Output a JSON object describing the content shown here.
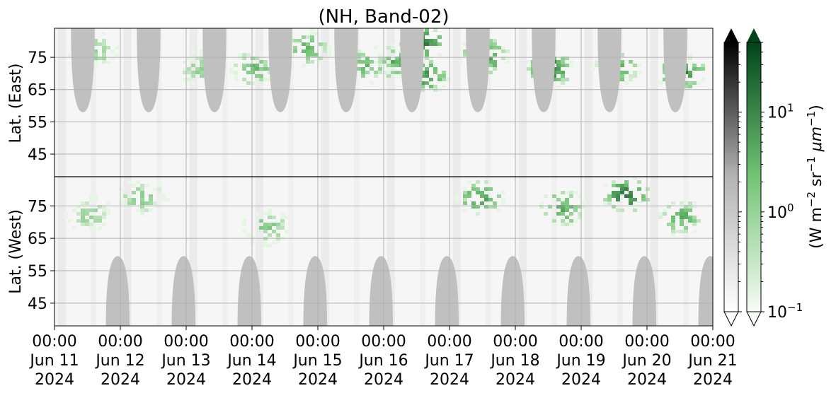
{
  "chart_data": {
    "type": "heatmap",
    "title": "(NH, Band-02)",
    "x_axis": {
      "ticks": [
        {
          "day": "00:00",
          "date": "Jun 11",
          "year": "2024"
        },
        {
          "day": "00:00",
          "date": "Jun 12",
          "year": "2024"
        },
        {
          "day": "00:00",
          "date": "Jun 13",
          "year": "2024"
        },
        {
          "day": "00:00",
          "date": "Jun 14",
          "year": "2024"
        },
        {
          "day": "00:00",
          "date": "Jun 15",
          "year": "2024"
        },
        {
          "day": "00:00",
          "date": "Jun 16",
          "year": "2024"
        },
        {
          "day": "00:00",
          "date": "Jun 17",
          "year": "2024"
        },
        {
          "day": "00:00",
          "date": "Jun 18",
          "year": "2024"
        },
        {
          "day": "00:00",
          "date": "Jun 19",
          "year": "2024"
        },
        {
          "day": "00:00",
          "date": "Jun 20",
          "year": "2024"
        },
        {
          "day": "00:00",
          "date": "Jun 21",
          "year": "2024"
        }
      ],
      "range": [
        "2024-06-11T00:00",
        "2024-06-21T00:00"
      ]
    },
    "y_axis_east": {
      "label": "Lat. (East)",
      "ticks": [
        "45",
        "55",
        "65",
        "75"
      ],
      "range": [
        38,
        84
      ]
    },
    "y_axis_west": {
      "label": "Lat. (West)",
      "ticks": [
        "75",
        "65",
        "55",
        "45"
      ],
      "range": [
        84,
        38
      ]
    },
    "colorbar": {
      "label_parts": [
        "(W m",
        "−2",
        " sr",
        "−1",
        " ",
        "μm",
        "−1",
        ")"
      ],
      "scale": "log",
      "range": [
        0.1,
        50
      ],
      "ticks": [
        {
          "value": 10,
          "base": "10",
          "exp": "1"
        },
        {
          "value": 1,
          "base": "10",
          "exp": "0"
        },
        {
          "value": 0.1,
          "base": "10",
          "exp": "−1"
        }
      ],
      "cmaps": [
        "gray",
        "green"
      ],
      "extend": "both"
    },
    "grid": true,
    "colors": {
      "green_low": "#f7fcf5",
      "green_high": "#00441b",
      "gray_low": "#ffffff",
      "gray_high": "#000000",
      "night_fill": "#c0c0c0"
    },
    "night_regions_east": [
      0.43,
      1.43,
      2.43,
      3.43,
      4.43,
      5.43,
      6.43,
      7.43,
      8.43,
      9.43
    ],
    "night_regions_west": [
      0.96,
      1.96,
      2.96,
      3.96,
      4.96,
      5.96,
      6.96,
      7.96,
      8.96,
      9.96
    ],
    "signal_clusters": [
      {
        "day": 0.55,
        "lat": 78,
        "hemi": "east",
        "value": 2
      },
      {
        "day": 0.5,
        "lat": 73,
        "hemi": "west",
        "value": 1.5
      },
      {
        "day": 1.3,
        "lat": 78,
        "hemi": "west",
        "value": 1.8
      },
      {
        "day": 2.2,
        "lat": 72,
        "hemi": "east",
        "value": 1.5
      },
      {
        "day": 3.0,
        "lat": 72,
        "hemi": "east",
        "value": 3
      },
      {
        "day": 3.2,
        "lat": 69,
        "hemi": "west",
        "value": 2
      },
      {
        "day": 3.8,
        "lat": 78,
        "hemi": "east",
        "value": 4
      },
      {
        "day": 4.7,
        "lat": 73,
        "hemi": "east",
        "value": 3
      },
      {
        "day": 5.2,
        "lat": 74,
        "hemi": "east",
        "value": 5
      },
      {
        "day": 5.55,
        "lat": 80,
        "hemi": "east",
        "value": 14
      },
      {
        "day": 5.6,
        "lat": 70,
        "hemi": "east",
        "value": 8
      },
      {
        "day": 6.5,
        "lat": 76,
        "hemi": "east",
        "value": 10
      },
      {
        "day": 6.45,
        "lat": 78,
        "hemi": "west",
        "value": 6
      },
      {
        "day": 7.5,
        "lat": 72,
        "hemi": "east",
        "value": 12
      },
      {
        "day": 7.7,
        "lat": 75,
        "hemi": "west",
        "value": 5
      },
      {
        "day": 8.65,
        "lat": 79,
        "hemi": "west",
        "value": 14
      },
      {
        "day": 8.5,
        "lat": 72,
        "hemi": "east",
        "value": 6
      },
      {
        "day": 9.5,
        "lat": 71,
        "hemi": "east",
        "value": 12
      },
      {
        "day": 9.5,
        "lat": 72,
        "hemi": "west",
        "value": 4
      }
    ]
  }
}
